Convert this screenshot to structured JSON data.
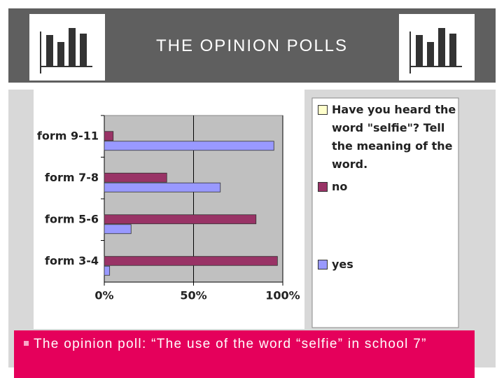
{
  "title": "THE OPINION POLLS",
  "bullet": "The opinion poll: “The use of the word “selfie” in school 7”",
  "chart_data": {
    "type": "hbar",
    "categories": [
      "form 3-4",
      "form 5-6",
      "form 7-8",
      "form 9-11"
    ],
    "series": [
      {
        "name": "Have you heard the word \"selfie\"? Tell the meaning of the word.",
        "color": "#ffffcc",
        "values": [
          null,
          null,
          null,
          null
        ]
      },
      {
        "name": "no",
        "color": "#993366",
        "values": [
          97,
          85,
          35,
          5
        ]
      },
      {
        "name": "yes",
        "color": "#9999ff",
        "values": [
          3,
          15,
          65,
          95
        ]
      }
    ],
    "xlim": [
      0,
      100
    ],
    "xticks": [
      {
        "value": 0,
        "label": "0%"
      },
      {
        "value": 50,
        "label": "50%"
      },
      {
        "value": 100,
        "label": "100%"
      }
    ],
    "grid": true
  }
}
